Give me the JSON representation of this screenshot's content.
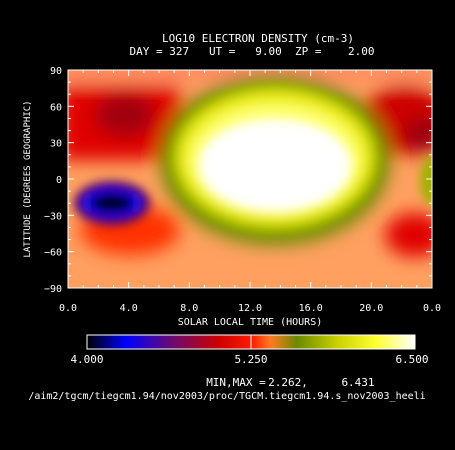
{
  "chart_data": {
    "type": "heatmap",
    "title": "LOG10 ELECTRON DENSITY (cm-3)",
    "subtitle": "DAY = 327   UT =   9.00  ZP =    2.00",
    "xlabel": "SOLAR LOCAL TIME (HOURS)",
    "ylabel": "LATITUDE (DEGREES GEOGRAPHIC)",
    "xlim": [
      0,
      24
    ],
    "ylim": [
      -90,
      90
    ],
    "x_tick_labels": [
      "0.0",
      "4.0",
      "8.0",
      "12.0",
      "16.0",
      "20.0",
      "0.0"
    ],
    "y_tick_labels": [
      "90",
      "60",
      "30",
      "0",
      "−30",
      "−60",
      "−90"
    ],
    "grid": false,
    "colorbar": {
      "min": 4.0,
      "max": 6.5,
      "tick_labels": [
        "4.000",
        "5.250",
        "6.500"
      ]
    },
    "minmax": {
      "label": "MIN,MAX =",
      "min": "2.262,",
      "max": "6.431"
    },
    "features": [
      {
        "lt": 13.5,
        "lat": 5,
        "log_ne": 6.43,
        "desc": "daytime maximum"
      },
      {
        "lt": 2.5,
        "lat": -15,
        "log_ne": 2.26,
        "desc": "night-side minimum"
      }
    ]
  },
  "footer": {
    "path": "/aim2/tgcm/tiegcm1.94/nov2003/proc/TGCM.tiegcm1.94.s_nov2003_heeli"
  },
  "colors": {
    "colormap": [
      "#000000",
      "#0000ff",
      "#7a0a7a",
      "#cc0000",
      "#ff0000",
      "#ff5a00",
      "#5a8a00",
      "#b5c400",
      "#ffff22",
      "#ffffff"
    ]
  }
}
